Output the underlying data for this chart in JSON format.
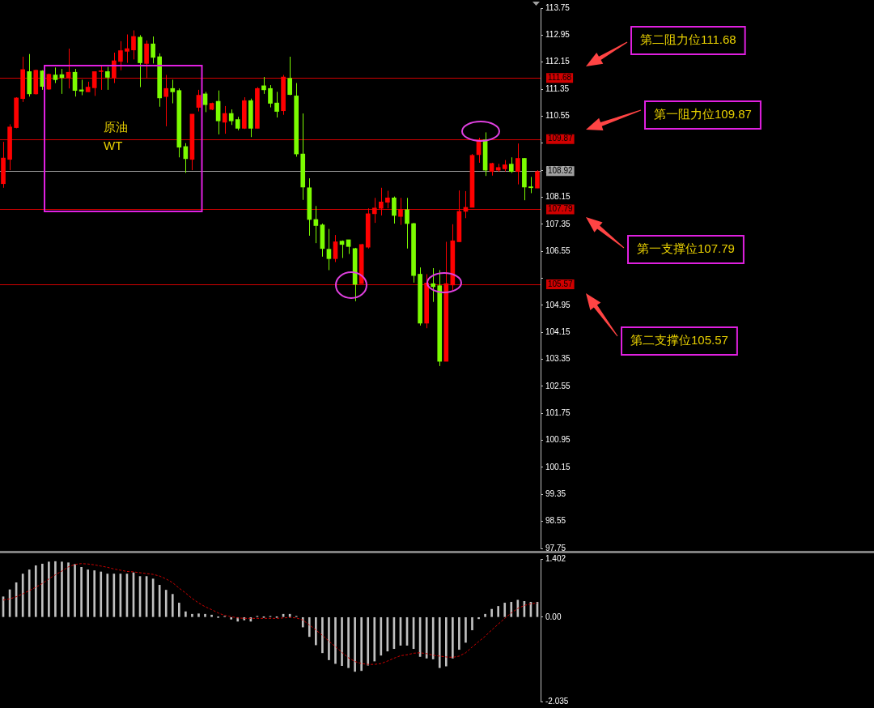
{
  "chart_data": [
    {
      "type": "candlestick",
      "categories": [
        null,
        null,
        null,
        null,
        null,
        null,
        null,
        null,
        null,
        null,
        null,
        null,
        null,
        null,
        null,
        null,
        null,
        null,
        null,
        null,
        null,
        null,
        null,
        null,
        null,
        null,
        null,
        null,
        null,
        null,
        null,
        null,
        null,
        null,
        null,
        null,
        null,
        null,
        null,
        null,
        null,
        null,
        null,
        null,
        null,
        null,
        null,
        null,
        null,
        null,
        null,
        null,
        null,
        null,
        null,
        null,
        null,
        null,
        null,
        null,
        null,
        null,
        null,
        null,
        null,
        null,
        null,
        null,
        null,
        null,
        null,
        null,
        null,
        null,
        null,
        null,
        null,
        null,
        null,
        null,
        null,
        null,
        null
      ],
      "ohlc": [
        [
          108.55,
          109.79,
          108.43,
          109.31
        ],
        [
          109.27,
          110.31,
          108.95,
          110.23
        ],
        [
          110.21,
          111.11,
          110.19,
          111.09
        ],
        [
          111.07,
          112.31,
          110.97,
          111.93
        ],
        [
          111.87,
          112.39,
          111.13,
          111.21
        ],
        [
          111.21,
          111.93,
          111.19,
          111.91
        ],
        [
          111.89,
          111.91,
          111.33,
          111.43
        ],
        [
          111.35,
          111.81,
          111.33,
          111.79
        ],
        [
          111.77,
          111.99,
          111.53,
          111.63
        ],
        [
          111.78,
          111.95,
          111.21,
          111.69
        ],
        [
          111.69,
          112.55,
          111.37,
          111.85
        ],
        [
          111.85,
          111.95,
          111.13,
          111.31
        ],
        [
          111.33,
          111.63,
          111.17,
          111.29
        ],
        [
          111.27,
          111.57,
          111.27,
          111.41
        ],
        [
          111.39,
          111.87,
          111.15,
          111.87
        ],
        [
          111.87,
          112.03,
          111.33,
          111.89
        ],
        [
          111.87,
          112.01,
          111.33,
          111.7
        ],
        [
          111.69,
          112.43,
          111.53,
          112.19
        ],
        [
          112.17,
          112.77,
          111.91,
          112.49
        ],
        [
          112.47,
          112.97,
          112.13,
          112.55
        ],
        [
          112.51,
          113.09,
          112.23,
          112.91
        ],
        [
          112.89,
          112.95,
          111.41,
          112.13
        ],
        [
          112.11,
          112.79,
          111.67,
          112.69
        ],
        [
          112.69,
          112.91,
          112.11,
          112.29
        ],
        [
          112.31,
          112.41,
          110.83,
          111.09
        ],
        [
          111.13,
          111.77,
          110.25,
          111.37
        ],
        [
          111.37,
          111.63,
          110.93,
          111.27
        ],
        [
          111.31,
          111.37,
          109.33,
          109.63
        ],
        [
          109.65,
          109.75,
          108.87,
          109.29
        ],
        [
          109.27,
          110.61,
          108.95,
          110.61
        ],
        [
          110.81,
          111.33,
          110.69,
          111.17
        ],
        [
          111.21,
          111.27,
          110.67,
          110.89
        ],
        [
          110.75,
          110.95,
          110.73,
          110.93
        ],
        [
          110.99,
          111.31,
          110.01,
          110.41
        ],
        [
          110.37,
          110.85,
          110.03,
          110.63
        ],
        [
          110.63,
          110.75,
          110.29,
          110.41
        ],
        [
          110.45,
          110.53,
          110.13,
          110.19
        ],
        [
          110.19,
          111.11,
          110.17,
          111.01
        ],
        [
          111.01,
          111.07,
          109.93,
          110.19
        ],
        [
          110.19,
          111.41,
          110.19,
          111.37
        ],
        [
          111.45,
          111.71,
          111.21,
          111.33
        ],
        [
          111.37,
          111.47,
          110.81,
          110.93
        ],
        [
          110.94,
          111.27,
          110.51,
          110.69
        ],
        [
          110.71,
          111.77,
          110.59,
          111.71
        ],
        [
          111.67,
          112.31,
          111.17,
          111.19
        ],
        [
          111.15,
          111.53,
          109.35,
          109.43
        ],
        [
          109.43,
          110.63,
          108.07,
          108.45
        ],
        [
          108.43,
          108.71,
          107.01,
          107.49
        ],
        [
          107.49,
          107.89,
          106.79,
          107.31
        ],
        [
          107.33,
          107.37,
          106.39,
          106.63
        ],
        [
          106.61,
          107.21,
          105.99,
          106.33
        ],
        [
          106.33,
          107.03,
          106.23,
          106.83
        ],
        [
          106.85,
          106.87,
          106.35,
          106.75
        ],
        [
          106.89,
          106.89,
          106.47,
          106.69
        ],
        [
          106.63,
          106.65,
          105.07,
          105.57
        ],
        [
          105.59,
          106.77,
          105.59,
          106.75
        ],
        [
          106.67,
          107.82,
          106.63,
          107.66
        ],
        [
          107.66,
          108.13,
          107.39,
          107.83
        ],
        [
          107.82,
          108.43,
          107.61,
          108.01
        ],
        [
          108.0,
          108.34,
          107.82,
          108.13
        ],
        [
          108.13,
          108.17,
          107.37,
          107.61
        ],
        [
          107.58,
          108.13,
          107.33,
          107.79
        ],
        [
          107.78,
          108.13,
          106.63,
          107.37
        ],
        [
          107.37,
          107.39,
          105.62,
          105.83
        ],
        [
          105.87,
          106.07,
          104.35,
          104.42
        ],
        [
          104.42,
          105.87,
          104.27,
          105.61
        ],
        [
          105.59,
          106.05,
          105.05,
          105.5
        ],
        [
          105.53,
          105.99,
          103.15,
          103.29
        ],
        [
          103.29,
          106.83,
          103.29,
          105.59
        ],
        [
          105.55,
          107.35,
          105.39,
          106.86
        ],
        [
          106.83,
          108.35,
          106.83,
          107.73
        ],
        [
          107.73,
          108.33,
          107.53,
          107.85
        ],
        [
          107.85,
          109.43,
          107.85,
          109.39
        ],
        [
          109.41,
          109.91,
          109.17,
          109.82
        ],
        [
          109.85,
          110.07,
          108.78,
          108.95
        ],
        [
          108.91,
          109.17,
          108.79,
          109.15
        ],
        [
          108.95,
          109.14,
          108.9,
          109.03
        ],
        [
          108.99,
          109.25,
          108.91,
          109.11
        ],
        [
          109.13,
          109.33,
          108.87,
          108.91
        ],
        [
          108.91,
          109.74,
          108.53,
          109.3
        ],
        [
          109.3,
          109.31,
          108.06,
          108.45
        ],
        [
          108.46,
          108.75,
          108.27,
          108.43
        ],
        [
          108.42,
          108.95,
          108.42,
          108.91
        ]
      ],
      "colors": [
        "#ff0000",
        "#ff0000",
        "#ff0000",
        "#ff0000",
        "#7cfc00",
        "#ff0000",
        "#7cfc00",
        "#ff0000",
        "#7cfc00",
        "#7cfc00",
        "#ff0000",
        "#7cfc00",
        "#7cfc00",
        "#ff0000",
        "#ff0000",
        "#ff0000",
        "#7cfc00",
        "#ff0000",
        "#ff0000",
        "#ff0000",
        "#ff0000",
        "#7cfc00",
        "#ff0000",
        "#7cfc00",
        "#7cfc00",
        "#ff0000",
        "#7cfc00",
        "#7cfc00",
        "#7cfc00",
        "#ff0000",
        "#ff0000",
        "#7cfc00",
        "#ff0000",
        "#7cfc00",
        "#ff0000",
        "#7cfc00",
        "#7cfc00",
        "#ff0000",
        "#7cfc00",
        "#ff0000",
        "#7cfc00",
        "#7cfc00",
        "#7cfc00",
        "#ff0000",
        "#7cfc00",
        "#7cfc00",
        "#7cfc00",
        "#7cfc00",
        "#7cfc00",
        "#7cfc00",
        "#7cfc00",
        "#ff0000",
        "#7cfc00",
        "#7cfc00",
        "#7cfc00",
        "#ff0000",
        "#ff0000",
        "#ff0000",
        "#ff0000",
        "#ff0000",
        "#7cfc00",
        "#ff0000",
        "#7cfc00",
        "#7cfc00",
        "#7cfc00",
        "#ff0000",
        "#7cfc00",
        "#7cfc00",
        "#ff0000",
        "#ff0000",
        "#ff0000",
        "#ff0000",
        "#ff0000",
        "#ff0000",
        "#7cfc00",
        "#ff0000",
        "#ff0000",
        "#ff0000",
        "#7cfc00",
        "#ff0000",
        "#7cfc00",
        "#7cfc00",
        "#ff0000"
      ],
      "ylim": [
        97.75,
        113.75
      ],
      "yticks": [
        113.75,
        112.95,
        112.15,
        111.35,
        110.55,
        {
          "value": 109.75,
          "label": null
        },
        108.95,
        108.15,
        107.35,
        106.55,
        {
          "value": 105.75,
          "label": null
        },
        104.95,
        104.15,
        103.35,
        102.55,
        101.75,
        100.95,
        100.15,
        99.35,
        98.55,
        97.75
      ],
      "ref_lines": [
        {
          "axis": "y",
          "value": 111.68,
          "label": "111.68",
          "color": "#d00000"
        },
        {
          "axis": "y",
          "value": 109.87,
          "label": "109.87",
          "color": "#d00000"
        },
        {
          "axis": "y",
          "value": 108.92,
          "label": "108.92",
          "color": "#a0a0a0"
        },
        {
          "axis": "y",
          "value": 107.79,
          "label": "107.79",
          "color": "#d00000"
        },
        {
          "axis": "y",
          "value": 105.57,
          "label": "105.57",
          "color": "#d00000"
        }
      ],
      "annotations": [
        "第二阻力位111.68",
        "第一阻力位109.87",
        "第一支撑位107.79",
        "第二支撑位105.57",
        "原油\nWT"
      ],
      "grid": false,
      "legend": false
    },
    {
      "type": "bar",
      "categories": [
        null,
        null,
        null,
        null,
        null,
        null,
        null,
        null,
        null,
        null,
        null,
        null,
        null,
        null,
        null,
        null,
        null,
        null,
        null,
        null,
        null,
        null,
        null,
        null,
        null,
        null,
        null,
        null,
        null,
        null,
        null,
        null,
        null,
        null,
        null,
        null,
        null,
        null,
        null,
        null,
        null,
        null,
        null,
        null,
        null,
        null,
        null,
        null,
        null,
        null,
        null,
        null,
        null,
        null,
        null,
        null,
        null,
        null,
        null,
        null,
        null,
        null,
        null,
        null,
        null,
        null,
        null,
        null,
        null,
        null,
        null,
        null,
        null,
        null,
        null,
        null,
        null,
        null,
        null,
        null,
        null,
        null,
        null
      ],
      "series": [
        {
          "type": "bar",
          "color": "#c0c0c0",
          "values": [
            0.49,
            0.66,
            0.83,
            1.04,
            1.14,
            1.24,
            1.28,
            1.33,
            1.34,
            1.33,
            1.31,
            1.27,
            1.2,
            1.14,
            1.12,
            1.09,
            1.04,
            1.04,
            1.04,
            1.04,
            1.07,
            0.98,
            0.98,
            0.92,
            0.77,
            0.65,
            0.55,
            0.34,
            0.13,
            0.07,
            0.08,
            0.07,
            0.05,
            0,
            0.02,
            -0.05,
            -0.1,
            -0.07,
            -0.1,
            0.02,
            0,
            0.02,
            0,
            0.07,
            0.07,
            0.02,
            -0.24,
            -0.47,
            -0.67,
            -0.86,
            -1.03,
            -1.12,
            -1.17,
            -1.22,
            -1.31,
            -1.29,
            -1.16,
            -1.06,
            -0.92,
            -0.82,
            -0.76,
            -0.68,
            -0.68,
            -0.76,
            -0.95,
            -0.99,
            -1.01,
            -1.22,
            -1.18,
            -0.99,
            -0.78,
            -0.61,
            -0.31,
            -0.04,
            0.07,
            0.19,
            0.26,
            0.34,
            0.36,
            0.41,
            0.38,
            0.36,
            0.36
          ]
        }
      ],
      "ylim": [
        -2.035,
        1.402
      ],
      "yticks": [
        1.402,
        {
          "value": 0,
          "label": "0.00"
        },
        -2.035
      ],
      "grid": false,
      "legend": false
    },
    {
      "type": "line",
      "categories": [
        null,
        null,
        null,
        null,
        null,
        null,
        null,
        null,
        null,
        null,
        null,
        null,
        null,
        null,
        null,
        null,
        null,
        null,
        null,
        null,
        null,
        null,
        null,
        null,
        null,
        null,
        null,
        null,
        null,
        null,
        null,
        null,
        null,
        null,
        null,
        null,
        null,
        null,
        null,
        null,
        null,
        null,
        null,
        null,
        null,
        null,
        null,
        null,
        null,
        null,
        null,
        null,
        null,
        null,
        null,
        null,
        null,
        null,
        null,
        null,
        null,
        null,
        null,
        null,
        null,
        null,
        null,
        null,
        null,
        null,
        null,
        null,
        null,
        null,
        null,
        null,
        null,
        null,
        null,
        null,
        null,
        null,
        null
      ],
      "series": [
        {
          "type": "line",
          "color": "#cc0000",
          "line_style": "dashed",
          "marker": "none",
          "values": [
            0.41,
            0.44,
            0.49,
            0.56,
            0.64,
            0.72,
            0.81,
            0.92,
            1.02,
            1.11,
            1.21,
            1.27,
            1.29,
            1.28,
            1.26,
            1.23,
            1.2,
            1.16,
            1.13,
            1.1,
            1.09,
            1.07,
            1.05,
            1.03,
            0.99,
            0.92,
            0.83,
            0.7,
            0.58,
            0.45,
            0.34,
            0.25,
            0.18,
            0.1,
            0.04,
            0.01,
            -0.02,
            -0.03,
            -0.03,
            -0.03,
            -0.03,
            -0.03,
            -0.03,
            -0.02,
            -0.01,
            -0.02,
            -0.07,
            -0.19,
            -0.31,
            -0.44,
            -0.58,
            -0.71,
            -0.85,
            -0.98,
            -1.07,
            -1.12,
            -1.14,
            -1.14,
            -1.12,
            -1.06,
            -0.99,
            -0.93,
            -0.91,
            -0.87,
            -0.86,
            -0.88,
            -0.92,
            -0.94,
            -0.96,
            -0.97,
            -0.94,
            -0.86,
            -0.72,
            -0.59,
            -0.46,
            -0.31,
            -0.17,
            -0.03,
            0.1,
            0.21,
            0.28,
            0.32,
            0.34
          ]
        }
      ],
      "ylim": [
        -2.035,
        1.402
      ],
      "grid": false
    }
  ]
}
